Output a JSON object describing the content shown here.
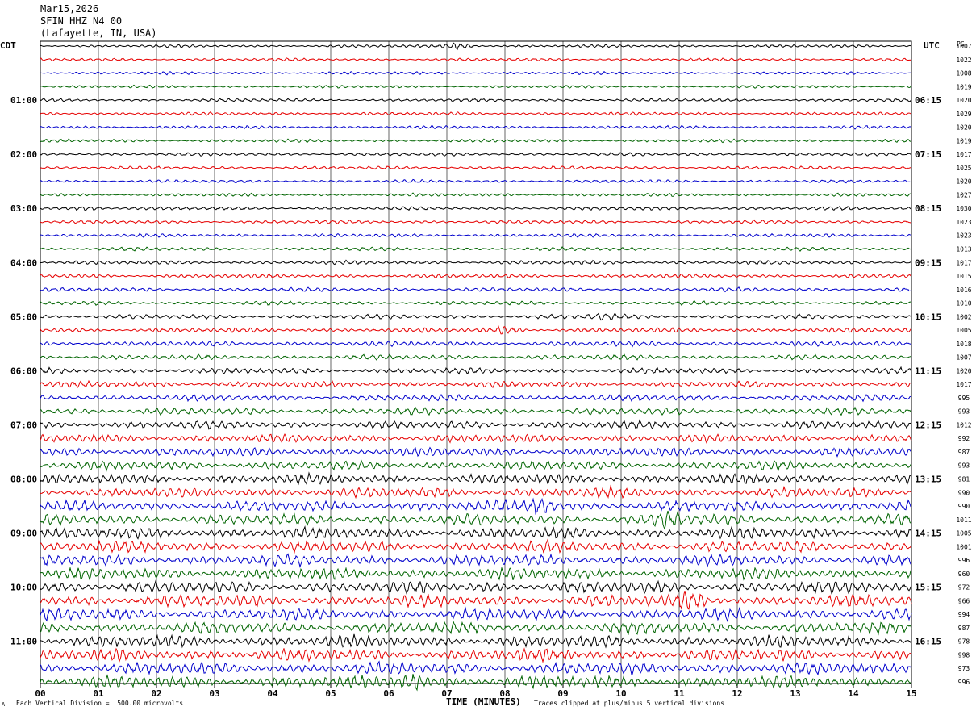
{
  "header": {
    "date": "Mar15,2026",
    "station": "SFIN HHZ N4 00",
    "location": "(Lafayette, IN, USA)"
  },
  "labels": {
    "left_tz": "CDT",
    "right_tz": "UTC",
    "pg": "PG"
  },
  "footer": {
    "left": "Each Vertical Division =  500.00 microvolts",
    "right": "Traces clipped at plus/minus 5 vertical divisions",
    "corner": "A"
  },
  "colors": {
    "trace_cycle": [
      "#000000",
      "#e60000",
      "#0000cc",
      "#006400"
    ],
    "grid": "#000000",
    "frame": "#000000"
  },
  "chart_data": {
    "type": "line",
    "title": "",
    "xlabel": "TIME (MINUTES)",
    "ylabel": "",
    "x_ticks": [
      "00",
      "01",
      "02",
      "03",
      "04",
      "05",
      "06",
      "07",
      "08",
      "09",
      "10",
      "11",
      "12",
      "13",
      "14",
      "15"
    ],
    "xlim": [
      0,
      15
    ],
    "left_hour_labels": [
      "01:00",
      "02:00",
      "03:00",
      "04:00",
      "05:00",
      "06:00",
      "07:00",
      "08:00",
      "09:00",
      "10:00",
      "11:00"
    ],
    "right_hour_labels": [
      "06:15",
      "07:15",
      "08:15",
      "09:15",
      "10:15",
      "11:15",
      "12:15",
      "13:15",
      "14:15",
      "15:15",
      "16:15"
    ],
    "trace_count": 48,
    "trace_minutes": 15,
    "trace_right_values": [
      "1007",
      "1022",
      "1008",
      "1019",
      "1020",
      "1029",
      "1020",
      "1019",
      "1017",
      "1025",
      "1020",
      "1027",
      "1030",
      "1023",
      "1023",
      "1013",
      "1017",
      "1015",
      "1016",
      "1010",
      "1002",
      "1005",
      "1018",
      "1007",
      "1020",
      "1017",
      "995",
      "993",
      "1012",
      "992",
      "987",
      "993",
      "981",
      "990",
      "990",
      "1011",
      "1005",
      "1001",
      "996",
      "960",
      "972",
      "966",
      "994",
      "987",
      "978",
      "998",
      "973",
      "996"
    ],
    "trace_activity": [
      0.8,
      0.8,
      0.8,
      0.8,
      0.9,
      0.9,
      0.9,
      0.9,
      0.9,
      0.9,
      0.9,
      0.9,
      1.0,
      1.0,
      1.0,
      1.0,
      1.1,
      1.1,
      1.1,
      1.1,
      1.3,
      1.3,
      1.4,
      1.4,
      1.6,
      1.7,
      1.8,
      2.0,
      2.2,
      2.3,
      2.4,
      2.5,
      2.7,
      2.8,
      3.0,
      3.0,
      3.1,
      3.1,
      3.2,
      3.2,
      3.3,
      3.3,
      3.3,
      3.3,
      3.3,
      3.3,
      3.4,
      3.4
    ],
    "bursts": [
      {
        "trace": 0,
        "minute": 7.2,
        "strength": 3.0
      },
      {
        "trace": 12,
        "minute": 0.8,
        "strength": 1.3
      },
      {
        "trace": 20,
        "minute": 9.7,
        "strength": 1.5
      },
      {
        "trace": 21,
        "minute": 8.0,
        "strength": 1.6
      },
      {
        "trace": 34,
        "minute": 8.6,
        "strength": 1.5
      },
      {
        "trace": 35,
        "minute": 10.8,
        "strength": 1.6
      },
      {
        "trace": 41,
        "minute": 11.2,
        "strength": 1.5
      },
      {
        "trace": 47,
        "minute": 6.4,
        "strength": 1.4
      }
    ],
    "grid": true,
    "clip_divisions": 5
  }
}
